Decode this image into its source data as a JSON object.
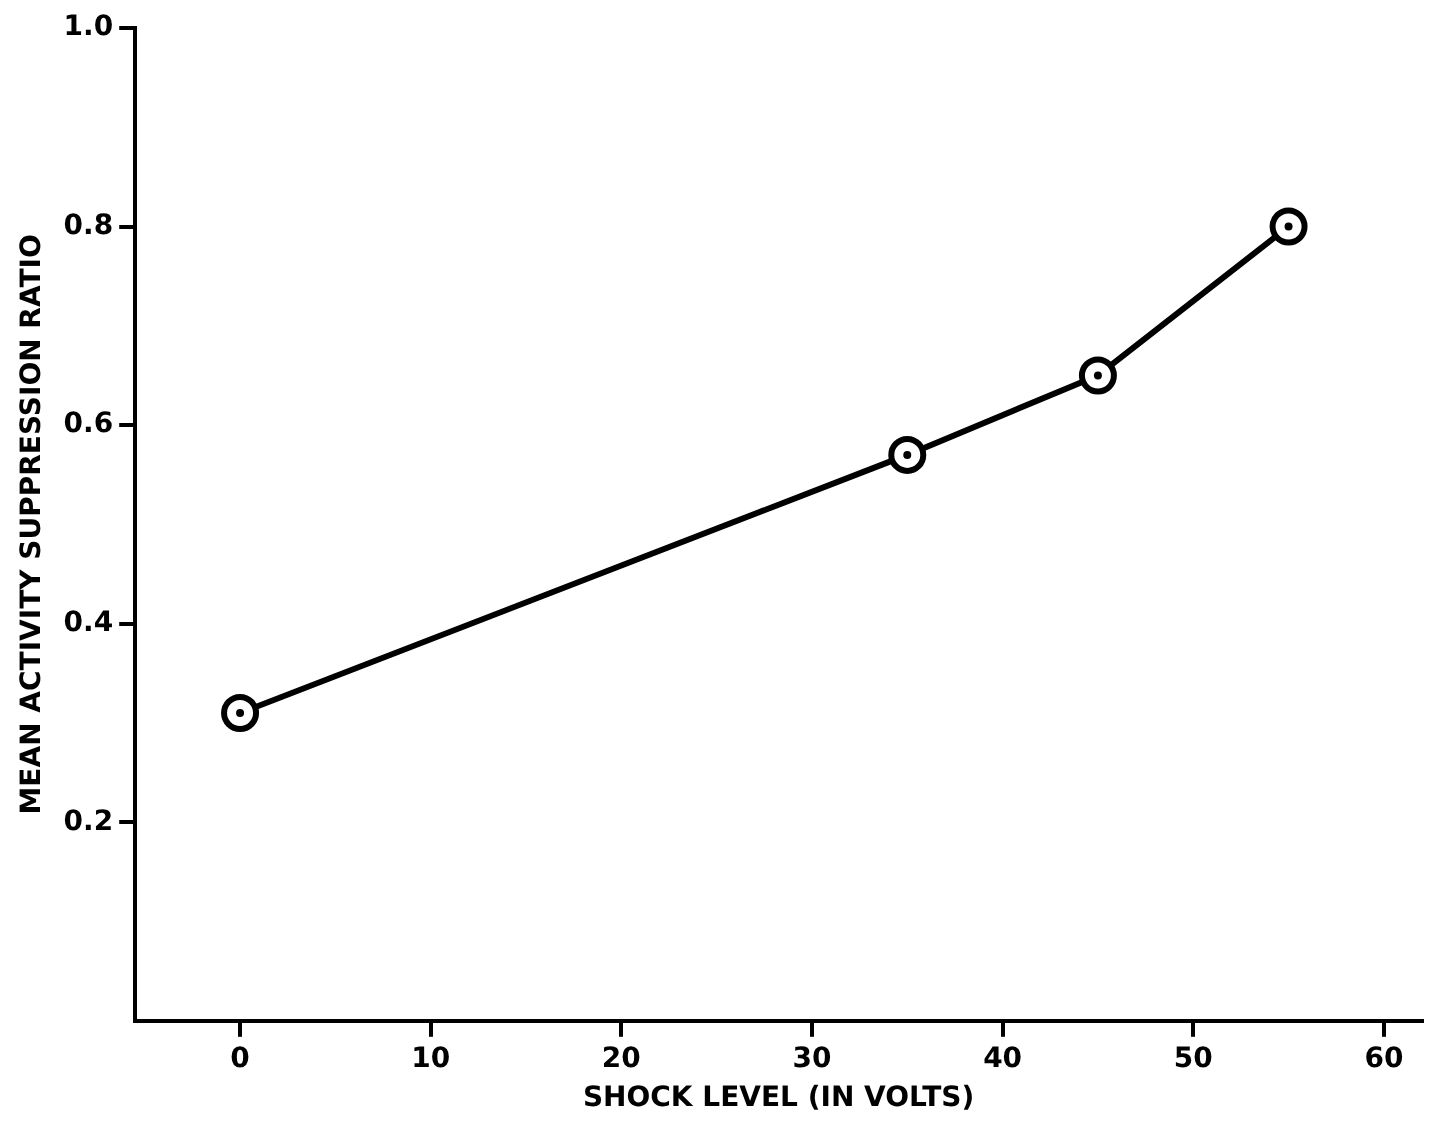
{
  "chart_data": {
    "type": "line",
    "xlabel": "SHOCK LEVEL (IN VOLTS)",
    "ylabel": "MEAN ACTIVITY SUPPRESSION RATIO",
    "x": [
      0,
      35,
      45,
      55
    ],
    "series": [
      {
        "color": "#000000",
        "values": [
          0.31,
          0.57,
          0.65,
          0.8
        ]
      }
    ],
    "xlim": [
      -5.5,
      62
    ],
    "xticks": [
      0,
      10,
      20,
      30,
      40,
      50,
      60
    ],
    "ylim": [
      0,
      1.0
    ],
    "yticks": [
      0.2,
      0.4,
      0.6,
      0.8,
      {
        "value": 1.0,
        "label": "1.0"
      }
    ],
    "marker": "circle",
    "line_style": "solid",
    "legend": false
  }
}
